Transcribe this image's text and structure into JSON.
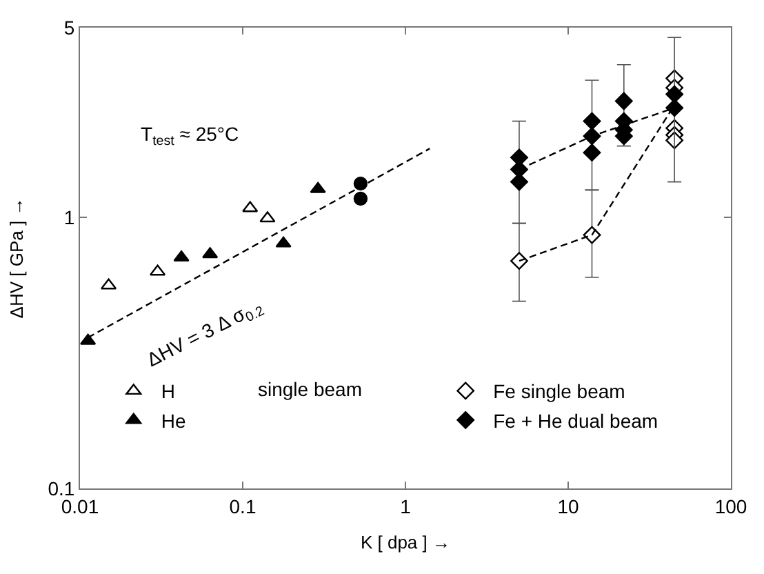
{
  "chart_data": {
    "type": "scatter",
    "xlabel": "K [ dpa ] →",
    "ylabel": "ΔHV [ GPa ] →",
    "log": "xy",
    "xlim": [
      0.01,
      100
    ],
    "xticks": [
      0.01,
      0.1,
      1,
      10,
      100
    ],
    "ylim": [
      0.1,
      5
    ],
    "yticks": [
      0.1,
      1,
      5
    ],
    "grid": false,
    "legend": "bottom",
    "annotations": [
      "T$_{test}$ ≈ 25°C",
      "ΔHV = 3 Δ σ$_{0.2}$",
      "single beam"
    ],
    "series": [
      {
        "name": "H",
        "color": "#ffffff",
        "marker": "triangle",
        "x": [
          0.015,
          0.03,
          0.111,
          0.142
        ],
        "values": [
          0.56,
          0.63,
          1.08,
          0.99
        ]
      },
      {
        "name": "He",
        "color": "#000000",
        "marker": "triangle",
        "x": [
          0.0112,
          0.042,
          0.063,
          0.178,
          0.29
        ],
        "values": [
          0.35,
          0.71,
          0.73,
          0.8,
          1.27
        ]
      },
      {
        "color": "#000000",
        "marker": "circle",
        "x": [
          0.53,
          0.53
        ],
        "values": [
          1.33,
          1.17
        ]
      },
      {
        "name": "Fe single beam",
        "color": "#ffffff",
        "marker": "diamond",
        "x": [
          5,
          14,
          45,
          45,
          45,
          45,
          45
        ],
        "values": [
          0.69,
          0.86,
          3.25,
          3.0,
          2.13,
          2.01,
          1.92
        ],
        "errors": [
          [
            0.49,
            0.95
          ],
          [
            0.6,
            1.26
          ],
          null,
          null,
          null,
          null,
          null
        ]
      },
      {
        "name": "Fe + He dual beam",
        "color": "#000000",
        "marker": "diamond",
        "x": [
          5,
          5,
          5,
          14,
          14,
          14,
          22,
          22,
          22,
          22,
          45,
          45
        ],
        "values": [
          1.66,
          1.5,
          1.35,
          2.26,
          1.99,
          1.73,
          2.68,
          2.26,
          2.1,
          1.99,
          2.84,
          2.53
        ],
        "errors": [
          null,
          [
            0.95,
            2.26
          ],
          null,
          null,
          [
            1.26,
            3.2
          ],
          null,
          null,
          [
            1.83,
            3.65
          ],
          null,
          null,
          null,
          [
            1.35,
            4.6
          ]
        ]
      },
      {
        "type": "line",
        "color": "#000000",
        "line_style": "dashed",
        "marker": "none",
        "x": [
          0.0112,
          1.41
        ],
        "values": [
          0.36,
          1.79
        ]
      },
      {
        "type": "line",
        "color": "#000000",
        "line_style": "dashed",
        "marker": "none",
        "x": [
          5,
          14,
          45
        ],
        "values": [
          0.69,
          0.86,
          2.59
        ]
      },
      {
        "type": "line",
        "color": "#000000",
        "line_style": "dashed",
        "marker": "none",
        "x": [
          5,
          14,
          45
        ],
        "values": [
          1.5,
          1.99,
          2.53
        ]
      }
    ]
  }
}
